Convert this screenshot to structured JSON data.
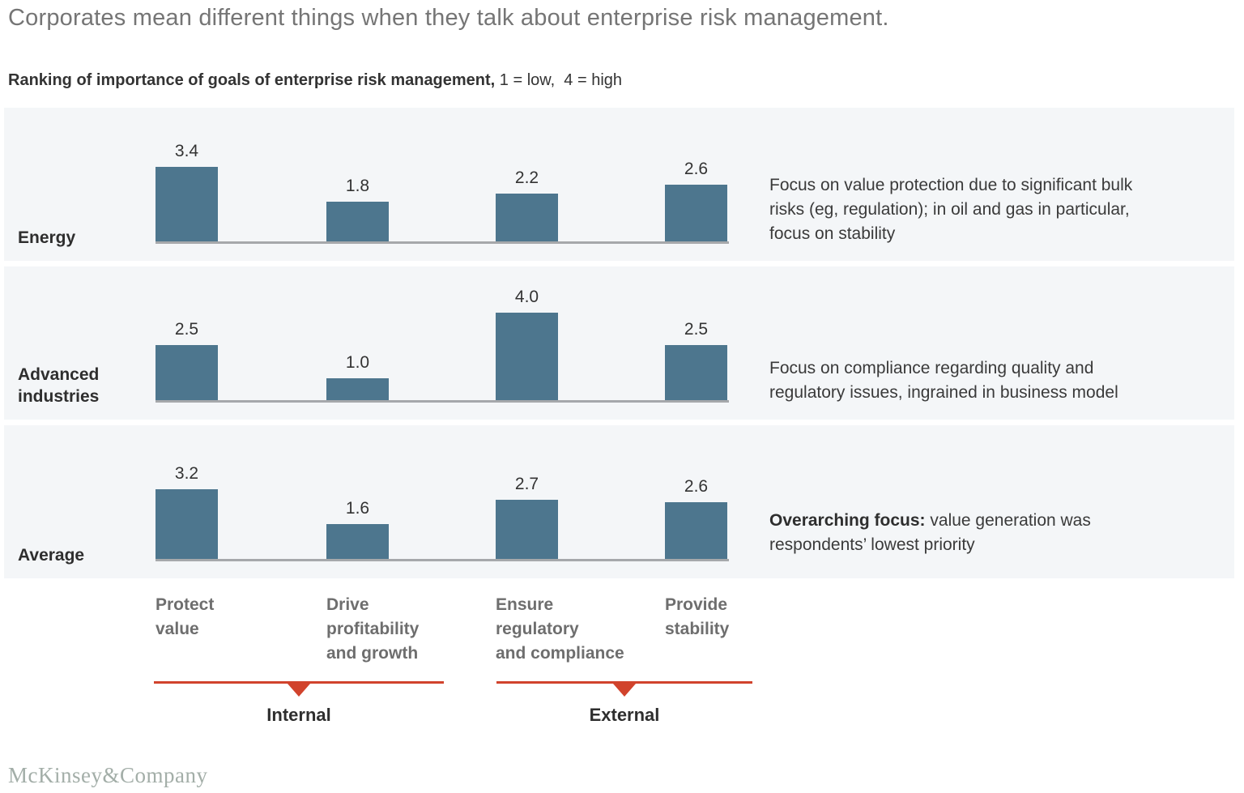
{
  "page_title": "Corporates mean different things when they talk about enterprise risk management.",
  "subtitle_bold": "Ranking of importance of goals of enterprise risk management,",
  "subtitle_scale": " 1 = low,  4 = high",
  "chart_data": {
    "type": "bar",
    "title": "Ranking of importance of goals of enterprise risk management",
    "scale_note": "1 = low, 4 = high",
    "ylim": [
      0,
      4
    ],
    "grid": false,
    "legend": "none",
    "categories": [
      "Protect value",
      "Drive profitability and growth",
      "Ensure regulatory and compliance",
      "Provide stability"
    ],
    "category_groups": [
      {
        "label": "Internal",
        "categories": [
          "Protect value",
          "Drive profitability and growth"
        ]
      },
      {
        "label": "External",
        "categories": [
          "Ensure regulatory and compliance",
          "Provide stability"
        ]
      }
    ],
    "series": [
      {
        "name": "Energy",
        "values": [
          3.4,
          1.8,
          2.2,
          2.6
        ],
        "value_labels": [
          "3.4",
          "1.8",
          "2.2",
          "2.6"
        ],
        "annotation_bold": "",
        "annotation": "Focus on value protection due to significant bulk\nrisks (eg, regulation); in oil and gas in particular,\nfocus on stability"
      },
      {
        "name": "Advanced industries",
        "values": [
          2.5,
          1.0,
          4.0,
          2.5
        ],
        "value_labels": [
          "2.5",
          "1.0",
          "4.0",
          "2.5"
        ],
        "annotation_bold": "",
        "annotation": "Focus on compliance regarding quality and\nregulatory issues, ingrained in business model"
      },
      {
        "name": "Average",
        "values": [
          3.2,
          1.6,
          2.7,
          2.6
        ],
        "value_labels": [
          "3.2",
          "1.6",
          "2.7",
          "2.6"
        ],
        "annotation_bold": "Overarching focus:",
        "annotation": " value generation was\nrespondents’ lowest priority"
      }
    ]
  },
  "axis_category_labels": [
    "Protect\nvalue",
    "Drive\nprofitability\nand growth",
    "Ensure\nregulatory\nand compliance",
    "Provide\nstability"
  ],
  "groups": [
    {
      "label": "Internal"
    },
    {
      "label": "External"
    }
  ],
  "footer_logo": "McKinsey&Company",
  "colors": {
    "bar": "#4d768e",
    "panel_bg": "#f4f6f8",
    "baseline": "#a6a8ab",
    "accent_red": "#d1432c",
    "title_gray": "#757575",
    "category_gray": "#6e6e6e",
    "text_dark": "#333333",
    "logo_gray": "#a3aea8"
  }
}
